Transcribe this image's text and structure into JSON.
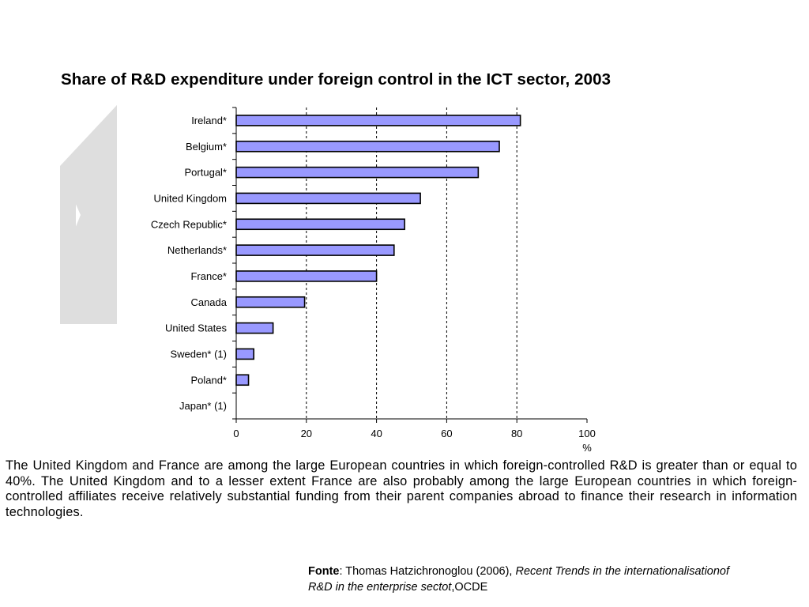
{
  "chart_data": {
    "type": "bar",
    "orientation": "horizontal",
    "title": "Share of R&D expenditure under foreign control in the ICT sector, 2003",
    "categories": [
      "Ireland*",
      "Belgium*",
      "Portugal*",
      "United Kingdom",
      "Czech Republic*",
      "Netherlands*",
      "France*",
      "Canada",
      "United States",
      "Sweden* (1)",
      "Poland*",
      "Japan* (1)"
    ],
    "values": [
      81,
      75,
      69,
      52.5,
      48,
      45,
      40,
      19.5,
      10.5,
      5,
      3.5,
      0
    ],
    "xlabel": "%",
    "ylabel": "",
    "xlim": [
      0,
      100
    ],
    "xticks": [
      "0",
      "20",
      "40",
      "60",
      "80",
      "100"
    ],
    "grid": "vertical dashed",
    "bar_color": "#9999ff",
    "legend": "none"
  },
  "caption": "The United Kingdom and France are among the large European countries in which foreign-controlled R&D is greater than or equal to 40%. The United Kingdom and to a lesser extent France are also probably among the large European countries in which foreign-controlled affiliates receive relatively substantial funding from their parent companies abroad to finance their research in information technologies.",
  "source": {
    "label": "Fonte",
    "author_year": ": Thomas Hatzichronoglou (2006), ",
    "work_title": "Recent Trends in the internationalisationof R&D in the enterprise sectot",
    "publisher": ",OCDE"
  }
}
